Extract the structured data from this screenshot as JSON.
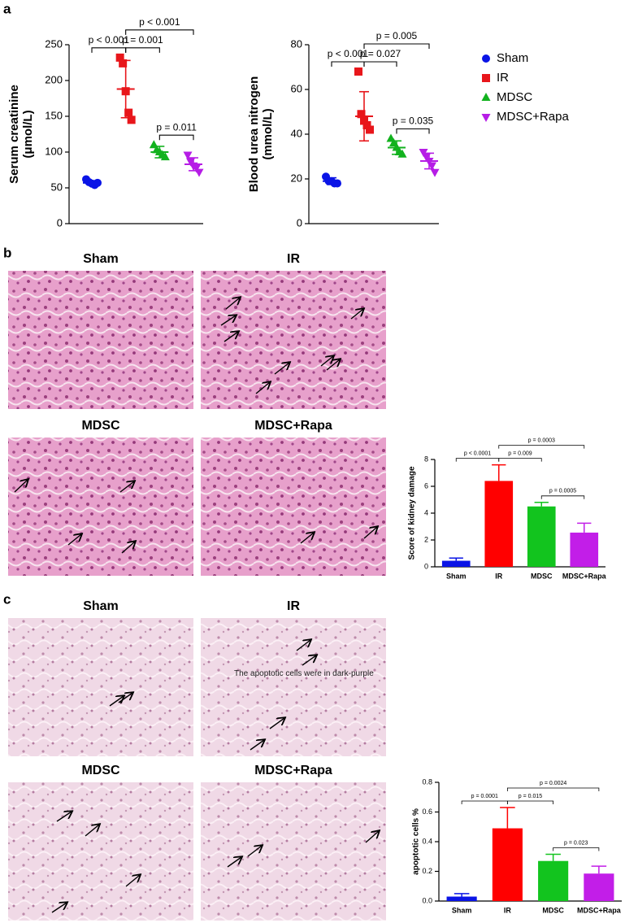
{
  "panel_labels": [
    "a",
    "b",
    "c"
  ],
  "images_b": [
    "Sham",
    "IR",
    "MDSC",
    "MDSC+Rapa"
  ],
  "images_c": [
    "Sham",
    "IR",
    "MDSC",
    "MDSC+Rapa"
  ],
  "image_note": "The apoptotic cells were in dark-purple",
  "chart_data": [
    {
      "type": "dotplot",
      "ylabel": [
        "Serum creatinine",
        "(μmol/L)"
      ],
      "ylim": [
        0,
        250
      ],
      "yticks": [
        0,
        50,
        100,
        150,
        200,
        250
      ],
      "legend": "right",
      "series": [
        {
          "name": "Sham",
          "color": "#0a14e6",
          "marker": "circle",
          "values": [
            62,
            58,
            56,
            54,
            57
          ],
          "mean": 57,
          "sd": 3
        },
        {
          "name": "IR",
          "color": "#e8161b",
          "marker": "square",
          "values": [
            232,
            224,
            185,
            155,
            145
          ],
          "mean": 188,
          "sd": 40
        },
        {
          "name": "MDSC",
          "color": "#12b21e",
          "marker": "triangle",
          "values": [
            110,
            103,
            100,
            96,
            93
          ],
          "mean": 100,
          "sd": 8
        },
        {
          "name": "MDSC+Rapa",
          "color": "#b61de6",
          "marker": "triangle-down",
          "values": [
            96,
            87,
            81,
            78,
            72
          ],
          "mean": 83,
          "sd": 9
        }
      ],
      "comparisons": [
        {
          "groups": [
            0,
            1
          ],
          "label": "p < 0.001"
        },
        {
          "groups": [
            1,
            2
          ],
          "label": "p = 0.001"
        },
        {
          "groups": [
            2,
            3
          ],
          "label": "p = 0.011"
        },
        {
          "groups": [
            1,
            3
          ],
          "label": "p < 0.001"
        }
      ]
    },
    {
      "type": "dotplot",
      "ylabel": [
        "Blood urea nitrogen",
        "(mmol/L)"
      ],
      "ylim": [
        0,
        80
      ],
      "yticks": [
        0,
        20,
        40,
        60,
        80
      ],
      "series": [
        {
          "color": "#0a14e6",
          "marker": "circle",
          "values": [
            21,
            19,
            19,
            18,
            18
          ],
          "mean": 19,
          "sd": 1.5
        },
        {
          "color": "#e8161b",
          "marker": "square",
          "values": [
            68,
            49,
            46,
            44,
            42
          ],
          "mean": 48,
          "sd": 11
        },
        {
          "color": "#12b21e",
          "marker": "triangle",
          "values": [
            38,
            36,
            34,
            32,
            31
          ],
          "mean": 34,
          "sd": 3
        },
        {
          "color": "#b61de6",
          "marker": "triangle-down",
          "values": [
            32,
            30,
            28,
            26,
            23
          ],
          "mean": 28,
          "sd": 3.5
        }
      ],
      "comparisons": [
        {
          "groups": [
            0,
            1
          ],
          "label": "p < 0.001"
        },
        {
          "groups": [
            1,
            2
          ],
          "label": "p = 0.027"
        },
        {
          "groups": [
            2,
            3
          ],
          "label": "p = 0.035"
        },
        {
          "groups": [
            1,
            3
          ],
          "label": "p = 0.005"
        }
      ]
    },
    {
      "type": "bar",
      "ylabel": "Score of kidney damage",
      "categories": [
        "Sham",
        "IR",
        "MDSC",
        "MDSC+Rapa"
      ],
      "values": [
        0.45,
        6.4,
        4.5,
        2.55
      ],
      "errors": [
        0.2,
        1.2,
        0.3,
        0.7
      ],
      "colors": [
        "#0a14e6",
        "#ff0000",
        "#12c41e",
        "#c21ee8"
      ],
      "ylim": [
        0,
        8
      ],
      "yticks": [
        0,
        2,
        4,
        6,
        8
      ],
      "comparisons": [
        {
          "groups": [
            0,
            1
          ],
          "label": "p < 0.0001"
        },
        {
          "groups": [
            1,
            2
          ],
          "label": "p = 0.009"
        },
        {
          "groups": [
            2,
            3
          ],
          "label": "p = 0.0005"
        },
        {
          "groups": [
            1,
            3
          ],
          "label": "p = 0.0003"
        }
      ]
    },
    {
      "type": "bar",
      "ylabel": "apoptotic cells %",
      "categories": [
        "Sham",
        "IR",
        "MDSC",
        "MDSC+Rapa"
      ],
      "values": [
        0.03,
        0.49,
        0.27,
        0.185
      ],
      "errors": [
        0.02,
        0.14,
        0.045,
        0.05
      ],
      "colors": [
        "#0a14e6",
        "#ff0000",
        "#12c41e",
        "#c21ee8"
      ],
      "ylim": [
        0,
        0.8
      ],
      "yticks": [
        {
          "value": 0,
          "label": "0.0"
        },
        0.2,
        0.4,
        0.6,
        0.8
      ],
      "comparisons": [
        {
          "groups": [
            0,
            1
          ],
          "label": "p = 0.0001"
        },
        {
          "groups": [
            1,
            2
          ],
          "label": "p = 0.015"
        },
        {
          "groups": [
            2,
            3
          ],
          "label": "p = 0.023"
        },
        {
          "groups": [
            1,
            3
          ],
          "label": "p = 0.0024"
        }
      ]
    }
  ]
}
